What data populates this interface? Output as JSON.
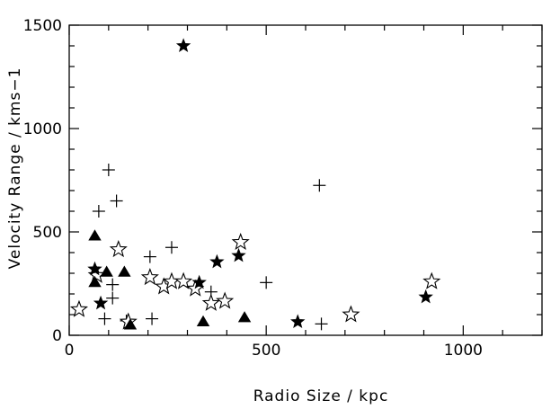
{
  "chart_data": {
    "type": "scatter",
    "title": "",
    "xlabel": "Radio Size / kpc",
    "ylabel": "Velocity Range / kms−1",
    "xlim": [
      0,
      1200
    ],
    "ylim": [
      0,
      1500
    ],
    "x_ticks_major": [
      0,
      500,
      1000
    ],
    "y_ticks_major": [
      0,
      500,
      1000,
      1500
    ],
    "grid": false,
    "legend": "none",
    "series": [
      {
        "marker": "plus",
        "points": [
          {
            "x": 100,
            "y": 800
          },
          {
            "x": 120,
            "y": 650
          },
          {
            "x": 75,
            "y": 600
          },
          {
            "x": 205,
            "y": 380
          },
          {
            "x": 260,
            "y": 425
          },
          {
            "x": 110,
            "y": 245
          },
          {
            "x": 110,
            "y": 180
          },
          {
            "x": 90,
            "y": 80
          },
          {
            "x": 210,
            "y": 80
          },
          {
            "x": 360,
            "y": 210
          },
          {
            "x": 500,
            "y": 255
          },
          {
            "x": 635,
            "y": 725
          },
          {
            "x": 640,
            "y": 55
          },
          {
            "x": 145,
            "y": 70
          }
        ]
      },
      {
        "marker": "open-star",
        "points": [
          {
            "x": 25,
            "y": 125
          },
          {
            "x": 70,
            "y": 290
          },
          {
            "x": 125,
            "y": 415
          },
          {
            "x": 150,
            "y": 65
          },
          {
            "x": 205,
            "y": 280
          },
          {
            "x": 240,
            "y": 235
          },
          {
            "x": 260,
            "y": 260
          },
          {
            "x": 290,
            "y": 260
          },
          {
            "x": 320,
            "y": 225
          },
          {
            "x": 360,
            "y": 155
          },
          {
            "x": 395,
            "y": 165
          },
          {
            "x": 435,
            "y": 450
          },
          {
            "x": 715,
            "y": 100
          },
          {
            "x": 920,
            "y": 260
          }
        ]
      },
      {
        "marker": "filled-star",
        "points": [
          {
            "x": 290,
            "y": 1400
          },
          {
            "x": 65,
            "y": 320
          },
          {
            "x": 80,
            "y": 155
          },
          {
            "x": 330,
            "y": 255
          },
          {
            "x": 375,
            "y": 355
          },
          {
            "x": 430,
            "y": 385
          },
          {
            "x": 580,
            "y": 65
          },
          {
            "x": 905,
            "y": 185
          }
        ]
      },
      {
        "marker": "filled-triangle",
        "points": [
          {
            "x": 65,
            "y": 480
          },
          {
            "x": 65,
            "y": 255
          },
          {
            "x": 95,
            "y": 305
          },
          {
            "x": 140,
            "y": 305
          },
          {
            "x": 155,
            "y": 50
          },
          {
            "x": 340,
            "y": 65
          },
          {
            "x": 445,
            "y": 85
          }
        ]
      }
    ]
  }
}
